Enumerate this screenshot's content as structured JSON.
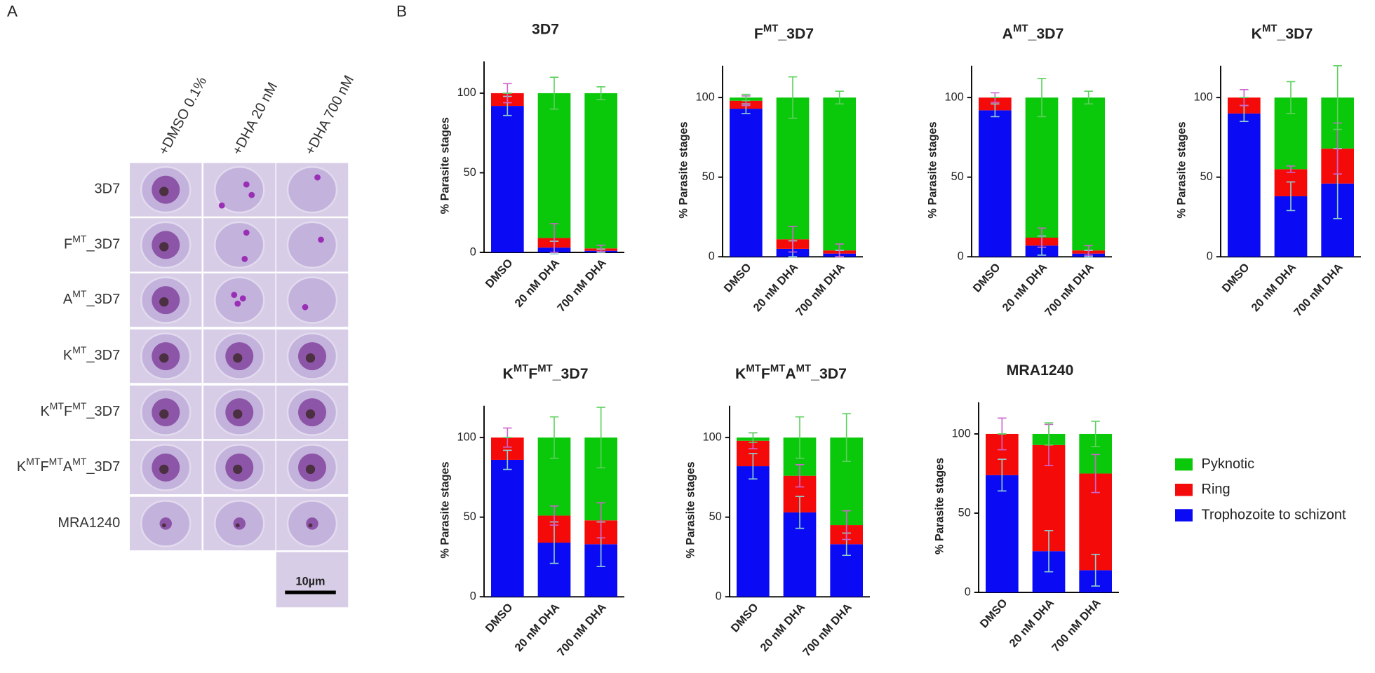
{
  "panel_labels": [
    "A",
    "B"
  ],
  "microscopy": {
    "columns": [
      "+DMSO 0.1%",
      "+DHA 20 nM",
      "+DHA 700 nM"
    ],
    "rows": [
      [
        {
          "text": "3D7"
        }
      ],
      [
        {
          "text": "F"
        },
        {
          "text": "MT",
          "sup": true
        },
        {
          "text": "_3D7"
        }
      ],
      [
        {
          "text": "A"
        },
        {
          "text": "MT",
          "sup": true
        },
        {
          "text": "_3D7"
        }
      ],
      [
        {
          "text": "K"
        },
        {
          "text": "MT",
          "sup": true
        },
        {
          "text": "_3D7"
        }
      ],
      [
        {
          "text": "K"
        },
        {
          "text": "MT",
          "sup": true
        },
        {
          "text": "F"
        },
        {
          "text": "MT",
          "sup": true
        },
        {
          "text": "_3D7"
        }
      ],
      [
        {
          "text": "K"
        },
        {
          "text": "MT",
          "sup": true
        },
        {
          "text": "F"
        },
        {
          "text": "MT",
          "sup": true
        },
        {
          "text": "A"
        },
        {
          "text": "MT",
          "sup": true
        },
        {
          "text": "_3D7"
        }
      ],
      [
        {
          "text": "MRA1240"
        }
      ]
    ],
    "scale_bar": "10µm"
  },
  "chart_data": [
    {
      "type": "bar",
      "stacked": true,
      "title": [
        {
          "text": "3D7"
        }
      ],
      "ylabel": "% Parasite stages",
      "categories": [
        "DMSO",
        "20 nM DHA",
        "700 nM DHA"
      ],
      "ylim": [
        0,
        120
      ],
      "yticks": [
        0,
        50,
        100
      ],
      "series": [
        {
          "name": "Trophozoite to schizont",
          "color": "#0a0af5",
          "error_color": "#8fcfcf",
          "values": [
            92,
            3,
            1
          ],
          "errors": [
            6,
            4,
            1
          ]
        },
        {
          "name": "Ring",
          "color": "#f50a0a",
          "error_color": "#cc66cc",
          "values": [
            8,
            6,
            1.5
          ],
          "errors": [
            6,
            9,
            2
          ]
        },
        {
          "name": "Pyknotic",
          "color": "#0ac80a",
          "error_color": "#5fd05f",
          "values": [
            0,
            91,
            97.5
          ],
          "errors": [
            0,
            10,
            4
          ]
        }
      ]
    },
    {
      "type": "bar",
      "stacked": true,
      "title": [
        {
          "text": "F"
        },
        {
          "text": "MT",
          "sup": true
        },
        {
          "text": "_3D7"
        }
      ],
      "ylabel": "% Parasite stages",
      "categories": [
        "DMSO",
        "20 nM DHA",
        "700 nM DHA"
      ],
      "ylim": [
        0,
        120
      ],
      "yticks": [
        0,
        50,
        100
      ],
      "series": [
        {
          "name": "Trophozoite to schizont",
          "color": "#0a0af5",
          "error_color": "#8fcfcf",
          "values": [
            93,
            5,
            2
          ],
          "errors": [
            3,
            5,
            2
          ]
        },
        {
          "name": "Ring",
          "color": "#f50a0a",
          "error_color": "#cc66cc",
          "values": [
            5,
            6,
            2
          ],
          "errors": [
            3,
            8,
            4
          ]
        },
        {
          "name": "Pyknotic",
          "color": "#0ac80a",
          "error_color": "#5fd05f",
          "values": [
            2,
            89,
            96
          ],
          "errors": [
            2,
            13,
            4
          ]
        }
      ]
    },
    {
      "type": "bar",
      "stacked": true,
      "title": [
        {
          "text": "A"
        },
        {
          "text": "MT",
          "sup": true
        },
        {
          "text": "_3D7"
        }
      ],
      "ylabel": "% Parasite stages",
      "categories": [
        "DMSO",
        "20 nM DHA",
        "700 nM DHA"
      ],
      "ylim": [
        0,
        120
      ],
      "yticks": [
        0,
        50,
        100
      ],
      "series": [
        {
          "name": "Trophozoite to schizont",
          "color": "#0a0af5",
          "error_color": "#8fcfcf",
          "values": [
            92,
            7,
            2
          ],
          "errors": [
            4,
            6,
            2
          ]
        },
        {
          "name": "Ring",
          "color": "#f50a0a",
          "error_color": "#cc66cc",
          "values": [
            8,
            5,
            2
          ],
          "errors": [
            3,
            6,
            3
          ]
        },
        {
          "name": "Pyknotic",
          "color": "#0ac80a",
          "error_color": "#5fd05f",
          "values": [
            0,
            88,
            96
          ],
          "errors": [
            0,
            12,
            4
          ]
        }
      ]
    },
    {
      "type": "bar",
      "stacked": true,
      "title": [
        {
          "text": "K"
        },
        {
          "text": "MT",
          "sup": true
        },
        {
          "text": "_3D7"
        }
      ],
      "ylabel": "% Parasite stages",
      "categories": [
        "DMSO",
        "20 nM DHA",
        "700 nM DHA"
      ],
      "ylim": [
        0,
        120
      ],
      "yticks": [
        0,
        50,
        100
      ],
      "series": [
        {
          "name": "Trophozoite to schizont",
          "color": "#0a0af5",
          "error_color": "#8fcfcf",
          "values": [
            90,
            38,
            46
          ],
          "errors": [
            5,
            9,
            22
          ]
        },
        {
          "name": "Ring",
          "color": "#f50a0a",
          "error_color": "#cc66cc",
          "values": [
            10,
            17,
            22
          ],
          "errors": [
            5,
            2,
            16
          ]
        },
        {
          "name": "Pyknotic",
          "color": "#0ac80a",
          "error_color": "#5fd05f",
          "values": [
            0,
            45,
            32
          ],
          "errors": [
            0,
            10,
            20
          ]
        }
      ]
    },
    {
      "type": "bar",
      "stacked": true,
      "title": [
        {
          "text": "K"
        },
        {
          "text": "MT",
          "sup": true
        },
        {
          "text": "F"
        },
        {
          "text": "MT",
          "sup": true
        },
        {
          "text": "_3D7"
        }
      ],
      "ylabel": "% Parasite stages",
      "categories": [
        "DMSO",
        "20 nM DHA",
        "700 nM DHA"
      ],
      "ylim": [
        0,
        120
      ],
      "yticks": [
        0,
        50,
        100
      ],
      "series": [
        {
          "name": "Trophozoite to schizont",
          "color": "#0a0af5",
          "error_color": "#8fcfcf",
          "values": [
            86,
            34,
            33
          ],
          "errors": [
            6,
            13,
            14
          ]
        },
        {
          "name": "Ring",
          "color": "#f50a0a",
          "error_color": "#cc66cc",
          "values": [
            14,
            17,
            15
          ],
          "errors": [
            6,
            6,
            11
          ]
        },
        {
          "name": "Pyknotic",
          "color": "#0ac80a",
          "error_color": "#5fd05f",
          "values": [
            0,
            49,
            52
          ],
          "errors": [
            0,
            13,
            19
          ]
        }
      ]
    },
    {
      "type": "bar",
      "stacked": true,
      "title": [
        {
          "text": "K"
        },
        {
          "text": "MT",
          "sup": true
        },
        {
          "text": "F"
        },
        {
          "text": "MT",
          "sup": true
        },
        {
          "text": "A"
        },
        {
          "text": "MT",
          "sup": true
        },
        {
          "text": "_3D7"
        }
      ],
      "ylabel": "% Parasite stages",
      "categories": [
        "DMSO",
        "20 nM DHA",
        "700 nM DHA"
      ],
      "ylim": [
        0,
        120
      ],
      "yticks": [
        0,
        50,
        100
      ],
      "series": [
        {
          "name": "Trophozoite to schizont",
          "color": "#0a0af5",
          "error_color": "#8fcfcf",
          "values": [
            82,
            53,
            33
          ],
          "errors": [
            8,
            10,
            7
          ]
        },
        {
          "name": "Ring",
          "color": "#f50a0a",
          "error_color": "#cc66cc",
          "values": [
            16,
            23,
            12
          ],
          "errors": [
            5,
            7,
            9
          ]
        },
        {
          "name": "Pyknotic",
          "color": "#0ac80a",
          "error_color": "#5fd05f",
          "values": [
            2,
            24,
            55
          ],
          "errors": [
            3,
            13,
            15
          ]
        }
      ]
    },
    {
      "type": "bar",
      "stacked": true,
      "title": [
        {
          "text": "MRA1240"
        }
      ],
      "ylabel": "% Parasite stages",
      "categories": [
        "DMSO",
        "20 nM DHA",
        "700 nM DHA"
      ],
      "ylim": [
        0,
        120
      ],
      "yticks": [
        0,
        50,
        100
      ],
      "series": [
        {
          "name": "Trophozoite to schizont",
          "color": "#0a0af5",
          "error_color": "#8fcfcf",
          "values": [
            74,
            26,
            14
          ],
          "errors": [
            10,
            13,
            10
          ]
        },
        {
          "name": "Ring",
          "color": "#f50a0a",
          "error_color": "#cc66cc",
          "values": [
            26,
            67,
            61
          ],
          "errors": [
            10,
            13,
            12
          ]
        },
        {
          "name": "Pyknotic",
          "color": "#0ac80a",
          "error_color": "#5fd05f",
          "values": [
            0,
            7,
            25
          ],
          "errors": [
            0,
            7,
            8
          ]
        }
      ]
    }
  ]
}
